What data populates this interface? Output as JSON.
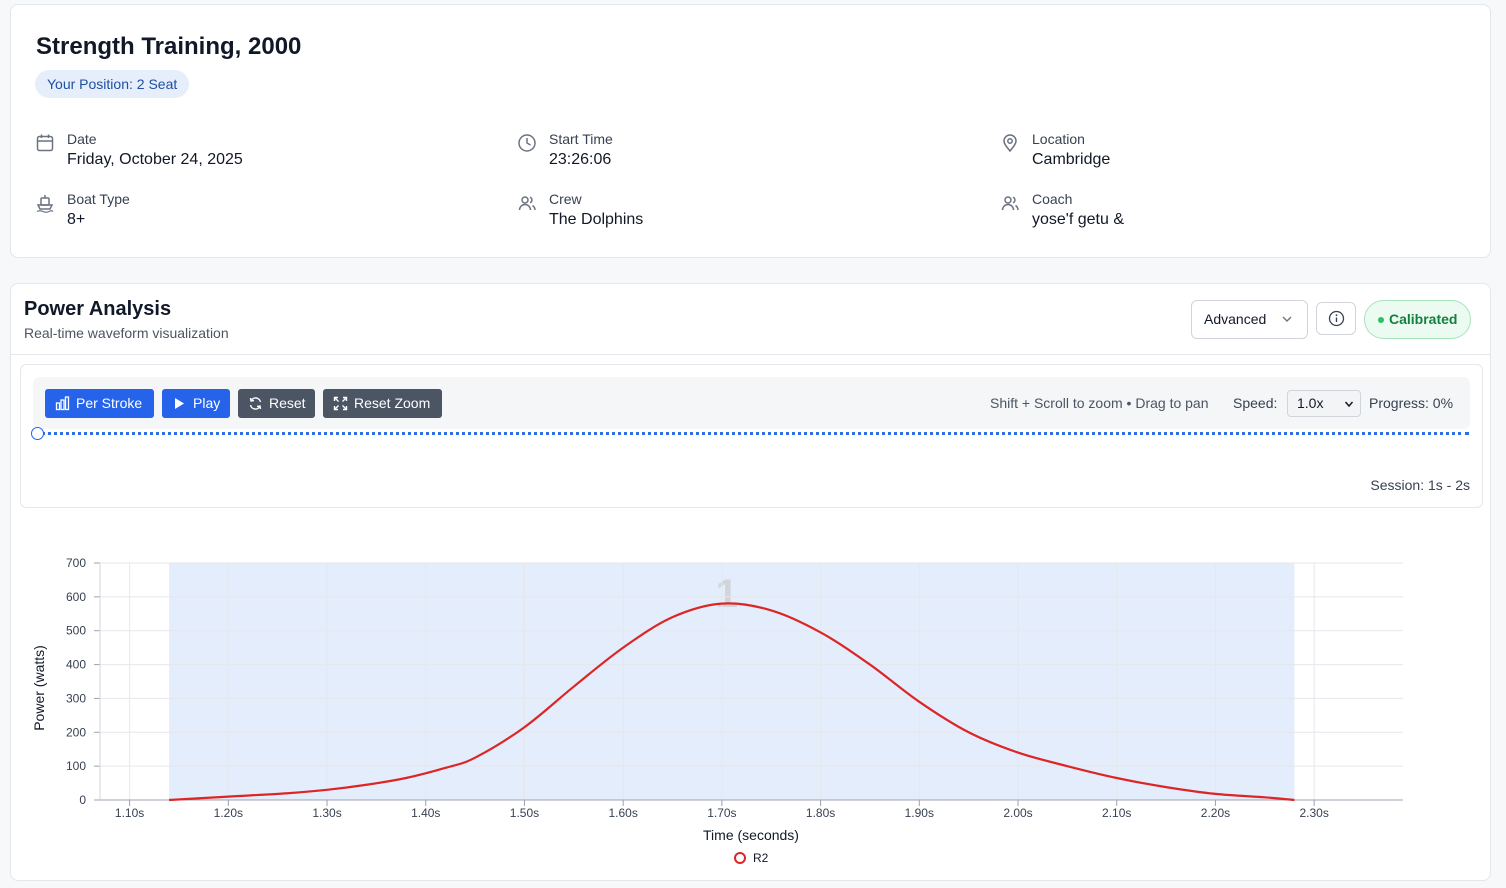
{
  "session": {
    "title": "Strength Training, 2000",
    "position_badge": "Your Position: 2 Seat",
    "fields": [
      {
        "icon": "calendar-icon",
        "label": "Date",
        "value": "Friday, October 24, 2025"
      },
      {
        "icon": "clock-icon",
        "label": "Start Time",
        "value": "23:26:06"
      },
      {
        "icon": "map-pin-icon",
        "label": "Location",
        "value": "Cambridge"
      },
      {
        "icon": "boat-icon",
        "label": "Boat Type",
        "value": "8+"
      },
      {
        "icon": "users-icon",
        "label": "Crew",
        "value": "The Dolphins"
      },
      {
        "icon": "users-icon",
        "label": "Coach",
        "value": "yose'f getu &"
      }
    ]
  },
  "power": {
    "title": "Power Analysis",
    "subtitle": "Real-time waveform visualization",
    "mode": "Advanced",
    "status": "Calibrated",
    "buttons": {
      "per_stroke": "Per Stroke",
      "play": "Play",
      "reset": "Reset",
      "reset_zoom": "Reset Zoom"
    },
    "hint": "Shift + Scroll to zoom • Drag to pan",
    "speed_label": "Speed:",
    "speed_value": "1.0x",
    "progress_label": "Progress: 0%",
    "progress": 0,
    "session_range": "Session: 1s - 2s"
  },
  "colors": {
    "accent": "#2563eb",
    "series": "#dc2626",
    "calibrated": "#15803d",
    "stroke_band": "#e4edfc"
  },
  "chart_data": {
    "type": "line",
    "xlabel": "Time (seconds)",
    "ylabel": "Power (watts)",
    "xlim": [
      1.07,
      2.39
    ],
    "ylim": [
      0,
      700
    ],
    "x_ticks": [
      1.1,
      1.2,
      1.3,
      1.4,
      1.5,
      1.6,
      1.7,
      1.8,
      1.9,
      2.0,
      2.1,
      2.2,
      2.3
    ],
    "x_tick_labels": [
      "1.10s",
      "1.20s",
      "1.30s",
      "1.40s",
      "1.50s",
      "1.60s",
      "1.70s",
      "1.80s",
      "1.90s",
      "2.00s",
      "2.10s",
      "2.20s",
      "2.30s"
    ],
    "y_ticks": [
      0,
      100,
      200,
      300,
      400,
      500,
      600,
      700
    ],
    "grid": true,
    "legend": "bottom-center",
    "stroke_band": {
      "x_start": 1.14,
      "x_end": 2.28,
      "label": "1"
    },
    "series": [
      {
        "name": "R2",
        "x": [
          1.14,
          1.2,
          1.26,
          1.3,
          1.34,
          1.38,
          1.42,
          1.45,
          1.5,
          1.55,
          1.6,
          1.65,
          1.7,
          1.75,
          1.8,
          1.85,
          1.9,
          1.95,
          2.0,
          2.05,
          2.1,
          2.15,
          2.2,
          2.25,
          2.28
        ],
        "y": [
          0,
          10,
          20,
          30,
          45,
          65,
          95,
          125,
          215,
          335,
          450,
          540,
          580,
          560,
          495,
          400,
          290,
          200,
          140,
          100,
          65,
          38,
          18,
          8,
          0
        ]
      }
    ]
  }
}
